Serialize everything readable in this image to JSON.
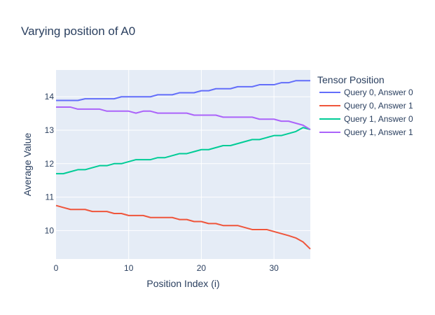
{
  "chart_data": {
    "type": "line",
    "title": "Varying position of A0",
    "xlabel": "Position Index (i)",
    "ylabel": "Average Value",
    "xlim": [
      0,
      35
    ],
    "ylim": [
      9.15,
      14.8
    ],
    "xticks": [
      0,
      10,
      20,
      30
    ],
    "yticks": [
      10,
      11,
      12,
      13,
      14
    ],
    "grid": true,
    "legend_title": "Tensor Position",
    "legend_position": "right",
    "x": [
      0,
      1,
      2,
      3,
      4,
      5,
      6,
      7,
      8,
      9,
      10,
      11,
      12,
      13,
      14,
      15,
      16,
      17,
      18,
      19,
      20,
      21,
      22,
      23,
      24,
      25,
      26,
      27,
      28,
      29,
      30,
      31,
      32,
      33,
      34,
      35
    ],
    "series": [
      {
        "name": "Query 0, Answer 0",
        "color": "#636efa",
        "values": [
          13.89,
          13.89,
          13.89,
          13.89,
          13.94,
          13.94,
          13.94,
          13.94,
          13.94,
          14.0,
          14.0,
          14.0,
          14.0,
          14.0,
          14.06,
          14.06,
          14.06,
          14.12,
          14.12,
          14.12,
          14.18,
          14.18,
          14.24,
          14.24,
          14.24,
          14.3,
          14.3,
          14.3,
          14.36,
          14.36,
          14.36,
          14.42,
          14.42,
          14.48,
          14.48,
          14.48
        ]
      },
      {
        "name": "Query 0, Answer 1",
        "color": "#ef553b",
        "values": [
          10.75,
          10.69,
          10.63,
          10.63,
          10.63,
          10.57,
          10.57,
          10.57,
          10.51,
          10.51,
          10.45,
          10.45,
          10.45,
          10.39,
          10.39,
          10.39,
          10.39,
          10.33,
          10.33,
          10.27,
          10.27,
          10.21,
          10.21,
          10.15,
          10.15,
          10.15,
          10.09,
          10.03,
          10.03,
          10.03,
          9.97,
          9.91,
          9.85,
          9.78,
          9.66,
          9.45
        ]
      },
      {
        "name": "Query 1, Answer 0",
        "color": "#00cc96",
        "values": [
          11.7,
          11.7,
          11.76,
          11.82,
          11.82,
          11.88,
          11.94,
          11.94,
          12.0,
          12.0,
          12.06,
          12.12,
          12.12,
          12.12,
          12.18,
          12.18,
          12.24,
          12.3,
          12.3,
          12.36,
          12.42,
          12.42,
          12.48,
          12.54,
          12.54,
          12.6,
          12.66,
          12.72,
          12.72,
          12.78,
          12.84,
          12.84,
          12.9,
          12.96,
          13.08,
          13.02
        ]
      },
      {
        "name": "Query 1, Answer 1",
        "color": "#ab63fa",
        "values": [
          13.69,
          13.69,
          13.69,
          13.63,
          13.63,
          13.63,
          13.63,
          13.57,
          13.57,
          13.57,
          13.57,
          13.51,
          13.57,
          13.57,
          13.51,
          13.51,
          13.51,
          13.51,
          13.51,
          13.45,
          13.45,
          13.45,
          13.45,
          13.39,
          13.39,
          13.39,
          13.39,
          13.39,
          13.33,
          13.33,
          13.33,
          13.27,
          13.27,
          13.21,
          13.15,
          13.02
        ]
      }
    ]
  }
}
